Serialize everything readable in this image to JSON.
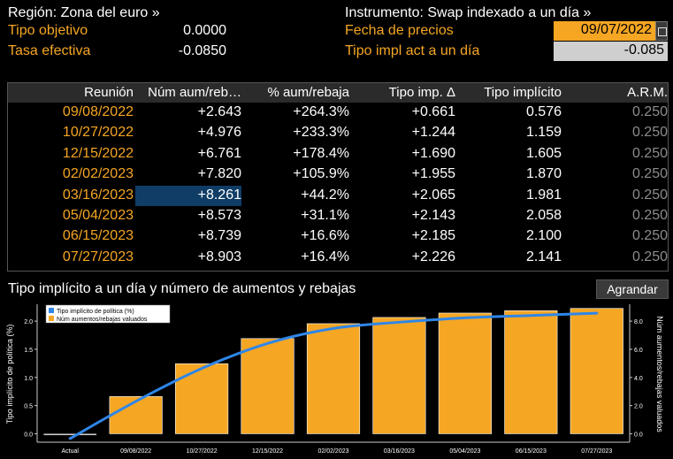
{
  "header": {
    "region_label": "Región: Zona del euro »",
    "instrument_label": "Instrumento: Swap indexado a un día »",
    "target_rate_label": "Tipo objetivo",
    "target_rate_value": "0.0000",
    "effective_rate_label": "Tasa efectiva",
    "effective_rate_value": "-0.0850",
    "price_date_label": "Fecha de precios",
    "price_date_value": "09/07/2022",
    "implied_rate_label": "Tipo impl act a un día",
    "implied_rate_value": "-0.085"
  },
  "table": {
    "columns": [
      "Reunión",
      "Núm aum/reb…",
      "% aum/rebaja",
      "Tipo imp. Δ",
      "Tipo implícito",
      "A.R.M."
    ],
    "rows": [
      [
        "09/08/2022",
        "+2.643",
        "+264.3%",
        "+0.661",
        "0.576",
        "0.250"
      ],
      [
        "10/27/2022",
        "+4.976",
        "+233.3%",
        "+1.244",
        "1.159",
        "0.250"
      ],
      [
        "12/15/2022",
        "+6.761",
        "+178.4%",
        "+1.690",
        "1.605",
        "0.250"
      ],
      [
        "02/02/2023",
        "+7.820",
        "+105.9%",
        "+1.955",
        "1.870",
        "0.250"
      ],
      [
        "03/16/2023",
        "+8.261",
        "+44.2%",
        "+2.065",
        "1.981",
        "0.250"
      ],
      [
        "05/04/2023",
        "+8.573",
        "+31.1%",
        "+2.143",
        "2.058",
        "0.250"
      ],
      [
        "06/15/2023",
        "+8.739",
        "+16.6%",
        "+2.185",
        "2.100",
        "0.250"
      ],
      [
        "07/27/2023",
        "+8.903",
        "+16.4%",
        "+2.226",
        "2.141",
        "0.250"
      ]
    ]
  },
  "chart_title": "Tipo implícito a un día y número de aumentos y rebajas",
  "expand_button": "Agrandar",
  "colors": {
    "orange": "#f5a623",
    "line_blue": "#2f86e8",
    "selected_cell": "#0f3d66"
  },
  "chart_data": {
    "type": "bar",
    "categories": [
      "Actual",
      "09/08/2022",
      "10/27/2022",
      "12/15/2022",
      "02/02/2023",
      "03/16/2023",
      "05/04/2023",
      "06/15/2023",
      "07/27/2023"
    ],
    "series": [
      {
        "name": "Núm aumentos/rebajas valuados",
        "type": "bar",
        "axis": "right",
        "values": [
          -0.1,
          2.643,
          4.976,
          6.761,
          7.82,
          8.261,
          8.573,
          8.739,
          8.903
        ]
      },
      {
        "name": "Tipo implícito de política (%)",
        "type": "line",
        "axis": "left",
        "values": [
          -0.085,
          0.576,
          1.159,
          1.605,
          1.87,
          1.981,
          2.058,
          2.1,
          2.141
        ]
      }
    ],
    "ylabel_left": "Tipo implícito de política (%)",
    "ylabel_right": "Núm aumentos/rebajas valuados",
    "yticks_left": [
      "0.0",
      "0.5",
      "1.0",
      "1.5",
      "2.0"
    ],
    "yticks_right": [
      "0.0",
      "2.0",
      "4.0",
      "6.0",
      "8.0"
    ],
    "ylim_left": [
      -0.15,
      2.3
    ],
    "ylim_right": [
      -0.6,
      9.2
    ],
    "legend_position": "top-left",
    "grid": false
  }
}
